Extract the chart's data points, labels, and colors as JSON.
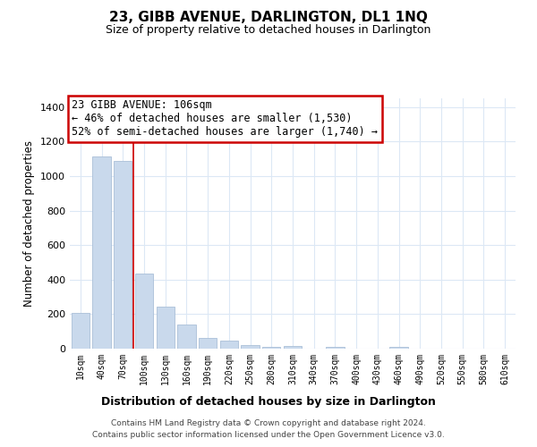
{
  "title": "23, GIBB AVENUE, DARLINGTON, DL1 1NQ",
  "subtitle": "Size of property relative to detached houses in Darlington",
  "xlabel": "Distribution of detached houses by size in Darlington",
  "ylabel": "Number of detached properties",
  "bar_labels": [
    "10sqm",
    "40sqm",
    "70sqm",
    "100sqm",
    "130sqm",
    "160sqm",
    "190sqm",
    "220sqm",
    "250sqm",
    "280sqm",
    "310sqm",
    "340sqm",
    "370sqm",
    "400sqm",
    "430sqm",
    "460sqm",
    "490sqm",
    "520sqm",
    "550sqm",
    "580sqm",
    "610sqm"
  ],
  "bar_values": [
    205,
    1115,
    1085,
    435,
    242,
    140,
    60,
    45,
    20,
    10,
    13,
    0,
    10,
    0,
    0,
    10,
    0,
    0,
    0,
    0,
    0
  ],
  "bar_color": "#c9d9ec",
  "bar_edge_color": "#aabfd8",
  "vline_color": "#cc0000",
  "vline_index": 2.5,
  "ylim": [
    0,
    1450
  ],
  "yticks": [
    0,
    200,
    400,
    600,
    800,
    1000,
    1200,
    1400
  ],
  "annotation_title": "23 GIBB AVENUE: 106sqm",
  "annotation_line1": "← 46% of detached houses are smaller (1,530)",
  "annotation_line2": "52% of semi-detached houses are larger (1,740) →",
  "annotation_box_color": "#ffffff",
  "annotation_box_edge": "#cc0000",
  "footer1": "Contains HM Land Registry data © Crown copyright and database right 2024.",
  "footer2": "Contains public sector information licensed under the Open Government Licence v3.0.",
  "background_color": "#ffffff",
  "grid_color": "#dce8f5"
}
